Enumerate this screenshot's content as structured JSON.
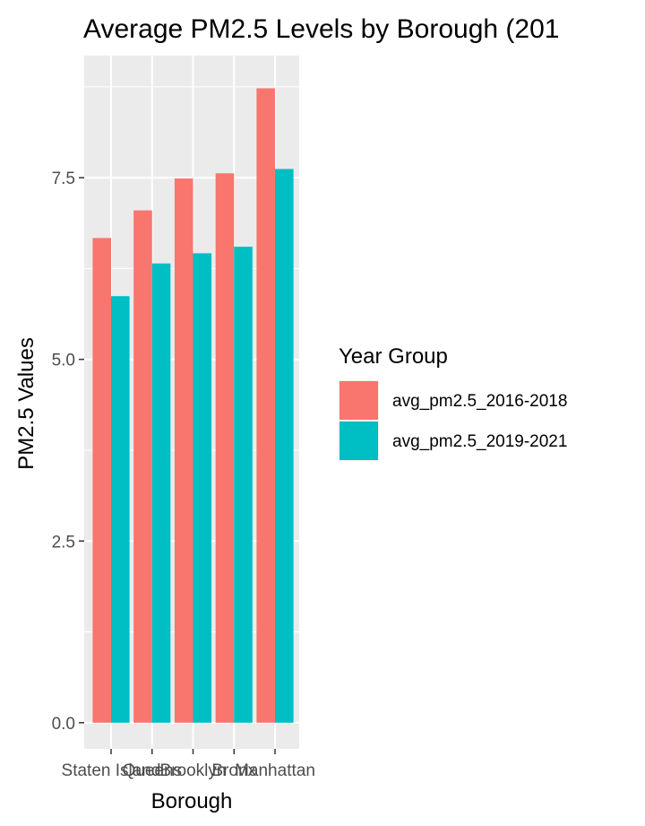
{
  "chart_data": {
    "type": "bar",
    "title": "Average PM2.5 Levels by Borough (201",
    "xlabel": "Borough",
    "ylabel": "PM2.5 Values",
    "categories": [
      "Staten Island",
      "Queens",
      "Brooklyn",
      "Bronx",
      "Manhattan"
    ],
    "series": [
      {
        "name": "avg_pm2.5_2016-2018",
        "values": [
          6.67,
          7.05,
          7.49,
          7.56,
          8.73
        ],
        "color": "#F8766D"
      },
      {
        "name": "avg_pm2.5_2019-2021",
        "values": [
          5.87,
          6.32,
          6.46,
          6.55,
          7.62
        ],
        "color": "#00BFC4"
      }
    ],
    "yticks": [
      0.0,
      2.5,
      5.0,
      7.5
    ],
    "ytick_labels": [
      "0.0",
      "2.5",
      "5.0",
      "7.5"
    ],
    "ylim": [
      -0.36,
      9.18
    ],
    "grid": true,
    "panel_color": "#EBEBEB",
    "legend": {
      "title": "Year Group",
      "placement": "right"
    }
  }
}
